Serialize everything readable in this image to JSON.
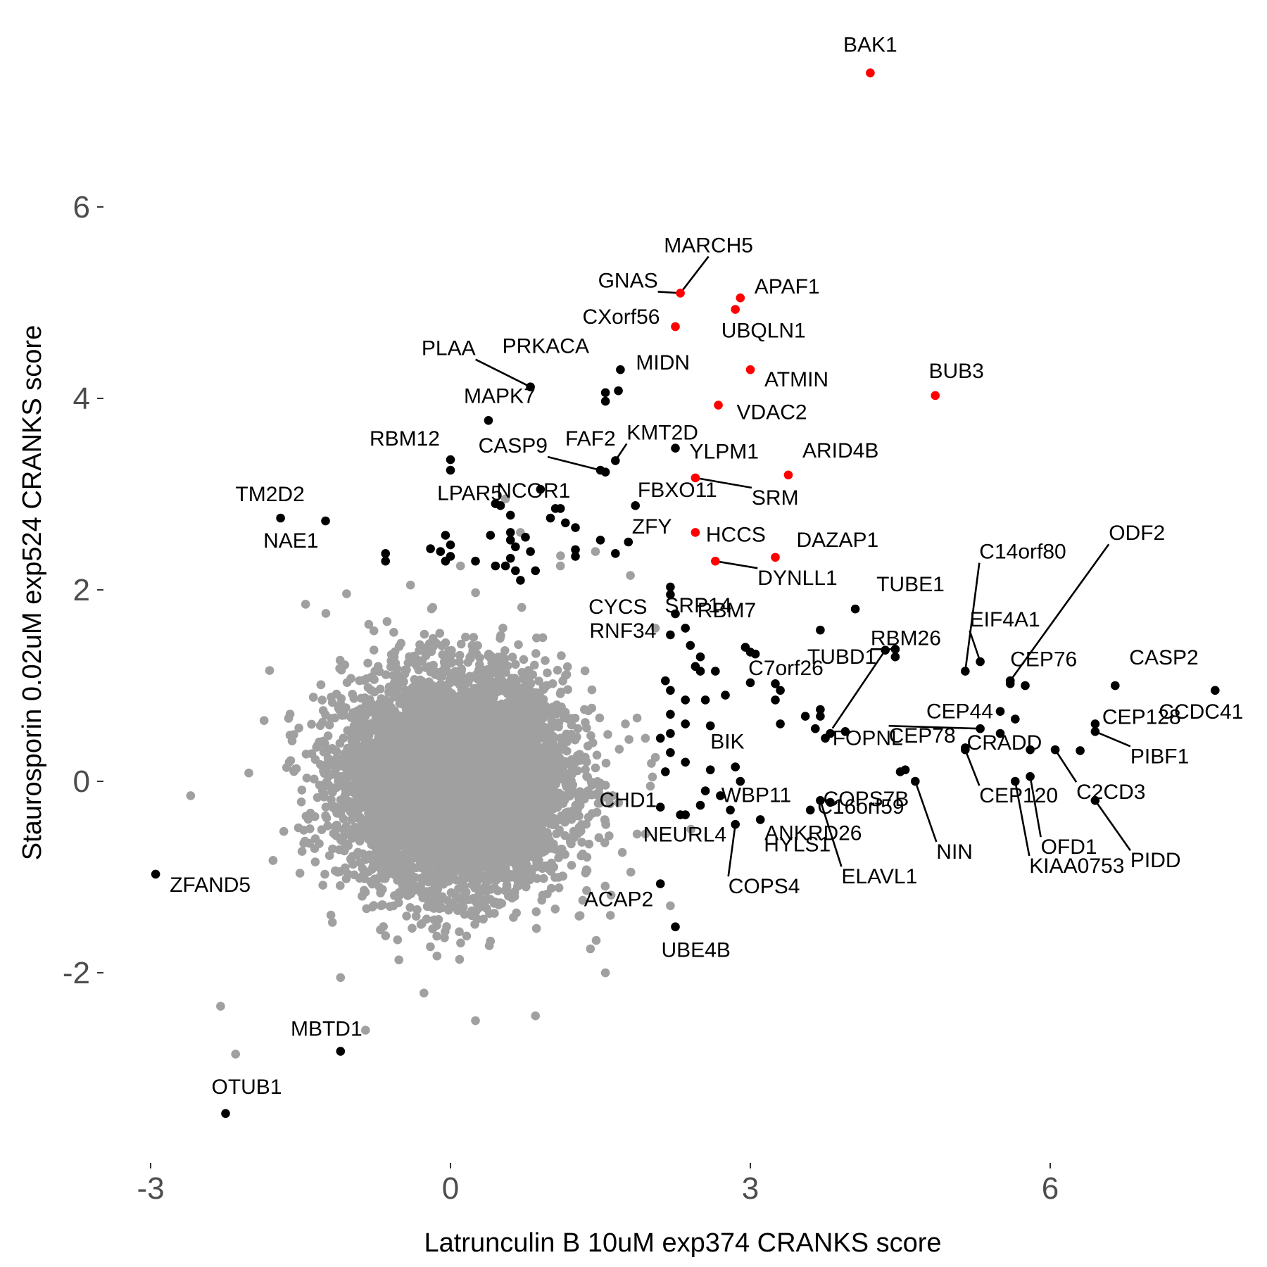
{
  "chart_data": {
    "type": "scatter",
    "xlabel": "Latrunculin B 10uM exp374 CRANKS score",
    "ylabel": "Staurosporin 0.02uM exp524 CRANKS score",
    "xlim": [
      -3.35,
      7.85
    ],
    "ylim": [
      -3.95,
      7.45
    ],
    "x_ticks": [
      -3,
      0,
      3,
      6
    ],
    "x_tick_labels": [
      "-3",
      "0",
      "3",
      "6"
    ],
    "y_ticks": [
      -2,
      0,
      2,
      4,
      6
    ],
    "y_tick_labels": [
      "-2",
      "0",
      "2",
      "4",
      "6"
    ],
    "grid": false,
    "legend": "none",
    "colors": {
      "background": "#A0A0A0",
      "highlight": "#000000",
      "top": "#FF0000"
    },
    "background_cloud": {
      "description": "several thousand unlabeled genes, grey",
      "center": [
        0.05,
        0.0
      ],
      "sd": [
        0.55,
        0.55
      ],
      "count": 7000
    },
    "background_outliers": [
      [
        -0.85,
        -2.6
      ],
      [
        -1.1,
        -2.05
      ],
      [
        -2.3,
        -2.35
      ],
      [
        -2.15,
        -2.85
      ],
      [
        -2.6,
        -0.15
      ],
      [
        0.25,
        -2.5
      ],
      [
        0.85,
        -2.45
      ],
      [
        1.4,
        -1.75
      ],
      [
        1.55,
        -2.0
      ],
      [
        2.2,
        -1.3
      ],
      [
        -1.45,
        1.85
      ],
      [
        -0.4,
        2.05
      ],
      [
        0.1,
        2.25
      ],
      [
        0.55,
        2.95
      ],
      [
        0.7,
        2.6
      ],
      [
        1.1,
        2.25
      ],
      [
        1.45,
        2.4
      ],
      [
        1.8,
        2.15
      ],
      [
        2.05,
        1.6
      ],
      [
        1.95,
        0.45
      ],
      [
        2.05,
        0.25
      ],
      [
        2.0,
        -0.05
      ],
      [
        1.95,
        -0.55
      ],
      [
        1.75,
        0.6
      ],
      [
        1.6,
        -1.4
      ]
    ],
    "labeled_points": [
      {
        "label": "BAK1",
        "x": 4.2,
        "y": 7.4,
        "color": "#FF0000"
      },
      {
        "label": "MARCH5",
        "x": 2.3,
        "y": 5.1,
        "color": "#FF0000"
      },
      {
        "label": "GNAS",
        "x": 2.3,
        "y": 5.1,
        "color": "#FF0000"
      },
      {
        "label": "APAF1",
        "x": 2.9,
        "y": 5.05,
        "color": "#FF0000"
      },
      {
        "label": "UBQLN1",
        "x": 2.85,
        "y": 4.93,
        "color": "#FF0000"
      },
      {
        "label": "CXorf56",
        "x": 2.25,
        "y": 4.75,
        "color": "#FF0000"
      },
      {
        "label": "ATMIN",
        "x": 3.0,
        "y": 4.3,
        "color": "#FF0000"
      },
      {
        "label": "BUB3",
        "x": 4.85,
        "y": 4.03,
        "color": "#FF0000"
      },
      {
        "label": "VDAC2",
        "x": 2.68,
        "y": 3.93,
        "color": "#FF0000"
      },
      {
        "label": "ARID4B",
        "x": 3.38,
        "y": 3.2,
        "color": "#FF0000"
      },
      {
        "label": "FBXO11",
        "x": 2.45,
        "y": 3.17,
        "color": "#FF0000"
      },
      {
        "label": "HCCS",
        "x": 2.45,
        "y": 2.6,
        "color": "#FF0000"
      },
      {
        "label": "DAZAP1",
        "x": 3.25,
        "y": 2.34,
        "color": "#FF0000"
      },
      {
        "label": "DYNLL1",
        "x": 2.65,
        "y": 2.3,
        "color": "#FF0000"
      },
      {
        "label": "PLAA",
        "x": 0.8,
        "y": 4.12,
        "color": "#000000"
      },
      {
        "label": "PRKACA",
        "x": 0.8,
        "y": 4.12,
        "color": "#000000"
      },
      {
        "label": "MIDN",
        "x": 1.7,
        "y": 4.3,
        "color": "#000000"
      },
      {
        "label": "MAPK7",
        "x": 0.38,
        "y": 3.77,
        "color": "#000000"
      },
      {
        "label": "KMT2D",
        "x": 1.65,
        "y": 3.35,
        "color": "#000000"
      },
      {
        "label": "FAF2",
        "x": 1.5,
        "y": 3.25,
        "color": "#000000"
      },
      {
        "label": "CASP9",
        "x": 1.5,
        "y": 3.25,
        "color": "#000000"
      },
      {
        "label": "RBM12",
        "x": 0.0,
        "y": 3.36,
        "color": "#000000"
      },
      {
        "label": "YLPM1",
        "x": 2.25,
        "y": 3.48,
        "color": "#000000"
      },
      {
        "label": "SRM",
        "x": 2.45,
        "y": 3.17,
        "color": "#000000"
      },
      {
        "label": "NCOR1",
        "x": 0.9,
        "y": 3.05,
        "color": "#000000"
      },
      {
        "label": "LPAR5",
        "x": 0.45,
        "y": 2.9,
        "color": "#000000"
      },
      {
        "label": "TM2D2",
        "x": -1.7,
        "y": 2.75,
        "color": "#000000"
      },
      {
        "label": "NAE1",
        "x": -1.25,
        "y": 2.72,
        "color": "#000000"
      },
      {
        "label": "ZFY",
        "x": 1.78,
        "y": 2.5,
        "color": "#000000"
      },
      {
        "label": "SRP14",
        "x": 2.2,
        "y": 1.95,
        "color": "#000000"
      },
      {
        "label": "TUBE1",
        "x": 4.05,
        "y": 1.8,
        "color": "#000000"
      },
      {
        "label": "C14orf80",
        "x": 5.15,
        "y": 1.15,
        "color": "#000000"
      },
      {
        "label": "CYCS",
        "x": 2.25,
        "y": 1.75,
        "color": "#000000"
      },
      {
        "label": "RBM7",
        "x": 2.4,
        "y": 1.42,
        "color": "#000000"
      },
      {
        "label": "RBM26",
        "x": 4.45,
        "y": 1.38,
        "color": "#000000"
      },
      {
        "label": "EIF4A1",
        "x": 5.3,
        "y": 1.25,
        "color": "#000000"
      },
      {
        "label": "ODF2",
        "x": 5.6,
        "y": 1.05,
        "color": "#000000"
      },
      {
        "label": "RNF34",
        "x": 2.2,
        "y": 1.53,
        "color": "#000000"
      },
      {
        "label": "C7orf26",
        "x": 3.05,
        "y": 1.33,
        "color": "#000000"
      },
      {
        "label": "TUBD1",
        "x": 4.45,
        "y": 1.3,
        "color": "#000000"
      },
      {
        "label": "CEP76",
        "x": 5.6,
        "y": 1.02,
        "color": "#000000"
      },
      {
        "label": "CASP2",
        "x": 6.65,
        "y": 1.0,
        "color": "#000000"
      },
      {
        "label": "FOPNL",
        "x": 4.35,
        "y": 1.37,
        "color": "#000000"
      },
      {
        "label": "CEP44",
        "x": 5.5,
        "y": 0.73,
        "color": "#000000"
      },
      {
        "label": "CEP128",
        "x": 6.45,
        "y": 0.6,
        "color": "#000000"
      },
      {
        "label": "CCDC41",
        "x": 7.65,
        "y": 0.95,
        "color": "#000000"
      },
      {
        "label": "PIBF1",
        "x": 6.45,
        "y": 0.52,
        "color": "#000000"
      },
      {
        "label": "BIK",
        "x": 2.6,
        "y": 0.12,
        "color": "#000000"
      },
      {
        "label": "WBP11",
        "x": 2.85,
        "y": 0.15,
        "color": "#000000"
      },
      {
        "label": "ANKRD26",
        "x": 4.55,
        "y": 0.12,
        "color": "#000000"
      },
      {
        "label": "CEP78",
        "x": 5.3,
        "y": 0.55,
        "color": "#000000"
      },
      {
        "label": "CRADD",
        "x": 5.8,
        "y": 0.33,
        "color": "#000000"
      },
      {
        "label": "C2CD3",
        "x": 6.05,
        "y": 0.33,
        "color": "#000000"
      },
      {
        "label": "CHD1",
        "x": 2.1,
        "y": -0.27,
        "color": "#000000"
      },
      {
        "label": "COPS7B",
        "x": 3.8,
        "y": -0.22,
        "color": "#000000"
      },
      {
        "label": "C16orf59",
        "x": 3.6,
        "y": -0.3,
        "color": "#000000"
      },
      {
        "label": "CEP120",
        "x": 5.15,
        "y": 0.33,
        "color": "#000000"
      },
      {
        "label": "NIN",
        "x": 4.65,
        "y": 0.0,
        "color": "#000000"
      },
      {
        "label": "OFD1",
        "x": 5.8,
        "y": 0.05,
        "color": "#000000"
      },
      {
        "label": "PIDD",
        "x": 6.45,
        "y": -0.2,
        "color": "#000000"
      },
      {
        "label": "NEURL4",
        "x": 2.35,
        "y": -0.35,
        "color": "#000000"
      },
      {
        "label": "HYLS1",
        "x": 3.1,
        "y": -0.4,
        "color": "#000000"
      },
      {
        "label": "KIAA0753",
        "x": 5.65,
        "y": 0.0,
        "color": "#000000"
      },
      {
        "label": "COPS4",
        "x": 2.85,
        "y": -0.45,
        "color": "#000000"
      },
      {
        "label": "ELAVL1",
        "x": 3.7,
        "y": -0.2,
        "color": "#000000"
      },
      {
        "label": "ZFAND5",
        "x": -2.95,
        "y": -0.97,
        "color": "#000000"
      },
      {
        "label": "ACAP2",
        "x": 2.1,
        "y": -1.07,
        "color": "#000000"
      },
      {
        "label": "UBE4B",
        "x": 2.25,
        "y": -1.52,
        "color": "#000000"
      },
      {
        "label": "MBTD1",
        "x": -1.1,
        "y": -2.82,
        "color": "#000000"
      },
      {
        "label": "OTUB1",
        "x": -2.25,
        "y": -3.47,
        "color": "#000000"
      }
    ],
    "unlabeled_highlight_points": [
      [
        1.68,
        4.08
      ],
      [
        1.55,
        4.06
      ],
      [
        1.55,
        3.97
      ],
      [
        0.0,
        3.25
      ],
      [
        1.55,
        3.23
      ],
      [
        -0.65,
        2.38
      ],
      [
        -0.65,
        2.3
      ],
      [
        -0.05,
        2.57
      ],
      [
        0.0,
        2.47
      ],
      [
        -0.1,
        2.4
      ],
      [
        0.0,
        2.35
      ],
      [
        -0.2,
        2.43
      ],
      [
        -0.05,
        2.3
      ],
      [
        0.25,
        2.3
      ],
      [
        0.45,
        2.25
      ],
      [
        0.4,
        2.57
      ],
      [
        0.5,
        2.88
      ],
      [
        0.6,
        2.78
      ],
      [
        0.6,
        2.6
      ],
      [
        0.6,
        2.52
      ],
      [
        0.65,
        2.45
      ],
      [
        0.6,
        2.33
      ],
      [
        0.55,
        2.25
      ],
      [
        0.65,
        2.2
      ],
      [
        0.7,
        2.1
      ],
      [
        0.75,
        2.55
      ],
      [
        0.8,
        2.4
      ],
      [
        0.85,
        2.2
      ],
      [
        1.15,
        2.7
      ],
      [
        1.0,
        2.75
      ],
      [
        1.1,
        2.85
      ],
      [
        1.05,
        2.85
      ],
      [
        1.25,
        2.65
      ],
      [
        1.25,
        2.42
      ],
      [
        1.25,
        2.35
      ],
      [
        1.5,
        2.52
      ],
      [
        1.65,
        2.38
      ],
      [
        1.85,
        2.88
      ],
      [
        2.2,
        2.03
      ],
      [
        2.35,
        1.6
      ],
      [
        2.5,
        1.3
      ],
      [
        2.5,
        1.15
      ],
      [
        2.65,
        1.15
      ],
      [
        2.75,
        0.9
      ],
      [
        2.55,
        0.85
      ],
      [
        2.15,
        1.05
      ],
      [
        2.2,
        0.95
      ],
      [
        2.2,
        0.7
      ],
      [
        2.45,
        1.2
      ],
      [
        2.35,
        0.85
      ],
      [
        2.2,
        0.5
      ],
      [
        2.1,
        0.45
      ],
      [
        2.35,
        0.6
      ],
      [
        2.6,
        0.58
      ],
      [
        2.2,
        0.3
      ],
      [
        2.35,
        0.2
      ],
      [
        2.15,
        0.1
      ],
      [
        2.9,
        0.0
      ],
      [
        2.5,
        -0.25
      ],
      [
        2.55,
        -0.1
      ],
      [
        2.3,
        -0.35
      ],
      [
        2.7,
        -0.15
      ],
      [
        2.8,
        -0.3
      ],
      [
        3.3,
        0.95
      ],
      [
        3.25,
        1.02
      ],
      [
        3.0,
        1.03
      ],
      [
        2.95,
        1.4
      ],
      [
        3.0,
        1.35
      ],
      [
        3.25,
        0.85
      ],
      [
        3.3,
        0.6
      ],
      [
        3.55,
        0.68
      ],
      [
        3.7,
        0.75
      ],
      [
        3.65,
        0.55
      ],
      [
        3.75,
        0.45
      ],
      [
        3.8,
        0.5
      ],
      [
        3.95,
        0.52
      ],
      [
        3.7,
        0.68
      ],
      [
        3.7,
        1.58
      ],
      [
        4.5,
        0.1
      ],
      [
        5.15,
        0.35
      ],
      [
        5.5,
        0.5
      ],
      [
        5.75,
        1.0
      ],
      [
        5.6,
        1.05
      ],
      [
        5.65,
        0.65
      ],
      [
        6.3,
        0.32
      ]
    ]
  }
}
